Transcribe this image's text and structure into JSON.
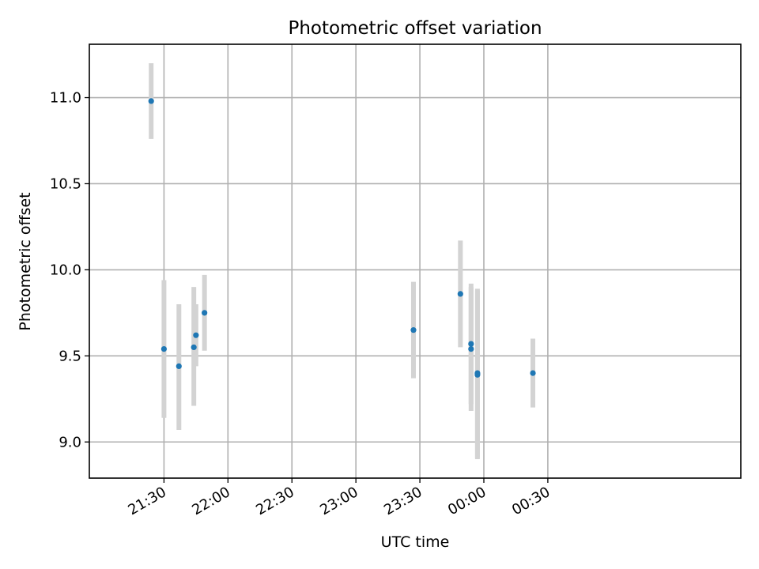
{
  "chart_data": {
    "type": "scatter",
    "title": "Photometric offset variation",
    "xlabel": "UTC time",
    "ylabel": "Photometric offset",
    "x_unit": "minutes since 21:00 UTC",
    "xlim": [
      -5.0,
      300.5
    ],
    "ylim": [
      8.79,
      11.31
    ],
    "x_ticks": [
      {
        "value": 30,
        "label": "21:30"
      },
      {
        "value": 60,
        "label": "22:00"
      },
      {
        "value": 90,
        "label": "22:30"
      },
      {
        "value": 120,
        "label": "23:00"
      },
      {
        "value": 150,
        "label": "23:30"
      },
      {
        "value": 180,
        "label": "00:00"
      },
      {
        "value": 210,
        "label": "00:30"
      }
    ],
    "y_ticks": [
      {
        "value": 9.0,
        "label": "9.0"
      },
      {
        "value": 9.5,
        "label": "9.5"
      },
      {
        "value": 10.0,
        "label": "10.0"
      },
      {
        "value": 10.5,
        "label": "10.5"
      },
      {
        "value": 11.0,
        "label": "11.0"
      }
    ],
    "grid": true,
    "series": [
      {
        "color": "#1f77b4",
        "errorbar_color": "#d3d3d3",
        "points": [
          {
            "x": "21:24",
            "y": 10.98,
            "lo": 10.76,
            "hi": 11.2
          },
          {
            "x": "21:30",
            "y": 9.54,
            "lo": 9.14,
            "hi": 9.94
          },
          {
            "x": "21:37",
            "y": 9.44,
            "lo": 9.07,
            "hi": 9.8
          },
          {
            "x": "21:44",
            "y": 9.55,
            "lo": 9.21,
            "hi": 9.9
          },
          {
            "x": "21:45",
            "y": 9.62,
            "lo": 9.44,
            "hi": 9.8
          },
          {
            "x": "21:49",
            "y": 9.75,
            "lo": 9.53,
            "hi": 9.97
          },
          {
            "x": "23:27",
            "y": 9.65,
            "lo": 9.37,
            "hi": 9.93
          },
          {
            "x": "23:49",
            "y": 9.86,
            "lo": 9.55,
            "hi": 10.17
          },
          {
            "x": "23:54",
            "y": 9.57,
            "lo": 9.22,
            "hi": 9.92
          },
          {
            "x": "23:54",
            "y": 9.54,
            "lo": 9.18,
            "hi": 9.9
          },
          {
            "x": "23:57",
            "y": 9.4,
            "lo": 8.91,
            "hi": 9.89
          },
          {
            "x": "23:57",
            "y": 9.39,
            "lo": 8.9,
            "hi": 9.88
          },
          {
            "x": "00:23",
            "y": 9.4,
            "lo": 9.2,
            "hi": 9.6
          }
        ]
      }
    ]
  }
}
